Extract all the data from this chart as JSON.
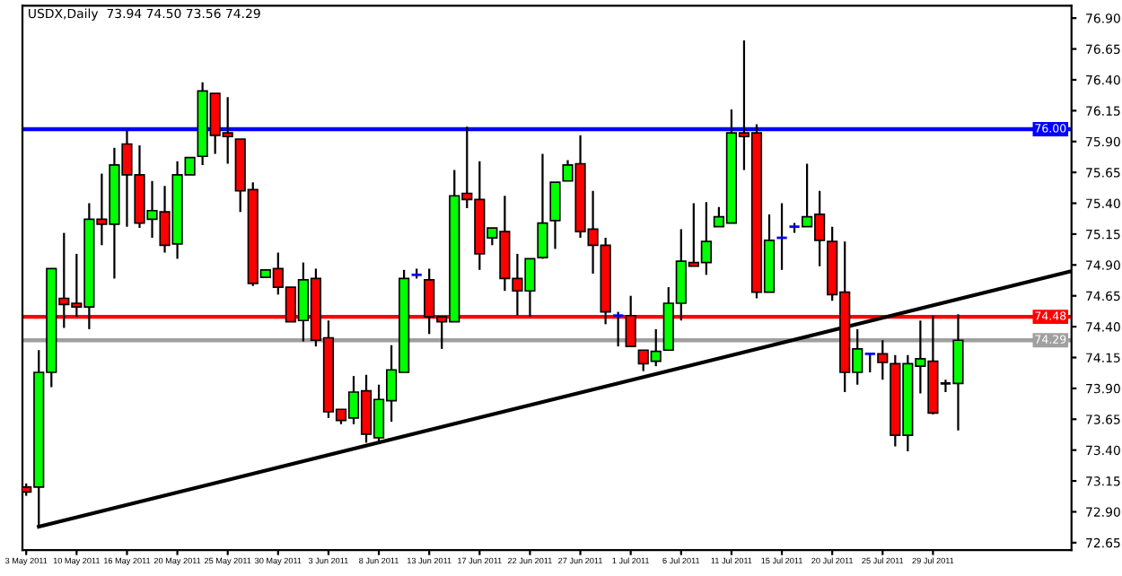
{
  "chart_data": {
    "type": "candlestick",
    "title": "USDX,Daily  73.94 74.50 73.56 74.29",
    "categories": [
      "3 May 2011",
      null,
      null,
      null,
      "10 May 2011",
      null,
      null,
      null,
      "16 May 2011",
      null,
      null,
      null,
      "20 May 2011",
      null,
      null,
      null,
      "25 May 2011",
      null,
      null,
      null,
      "30 May 2011",
      null,
      null,
      null,
      "3 Jun 2011",
      null,
      null,
      null,
      "8 Jun 2011",
      null,
      null,
      null,
      "13 Jun 2011",
      null,
      null,
      null,
      "17 Jun 2011",
      null,
      null,
      null,
      "22 Jun 2011",
      null,
      null,
      null,
      "27 Jun 2011",
      null,
      null,
      null,
      "1 Jul 2011",
      null,
      null,
      null,
      "6 Jul 2011",
      null,
      null,
      null,
      "11 Jul 2011",
      null,
      null,
      null,
      "15 Jul 2011",
      null,
      null,
      null,
      "20 Jul 2011",
      null,
      null,
      null,
      "25 Jul 2011",
      null,
      null,
      null,
      "29 Jul 2011",
      null,
      null,
      null,
      null,
      null,
      null,
      null,
      null,
      null,
      null,
      null
    ],
    "ohlc": [
      [
        73.1,
        73.13,
        73.03,
        73.06
      ],
      [
        73.1,
        74.21,
        72.78,
        74.03
      ],
      [
        74.03,
        74.87,
        73.91,
        74.87
      ],
      [
        74.63,
        75.16,
        74.39,
        74.58
      ],
      [
        74.59,
        74.99,
        74.48,
        74.56
      ],
      [
        74.56,
        75.4,
        74.38,
        75.27
      ],
      [
        75.27,
        75.64,
        75.06,
        75.23
      ],
      [
        75.23,
        75.85,
        74.79,
        75.71
      ],
      [
        75.88,
        75.99,
        75.21,
        75.63
      ],
      [
        75.63,
        75.87,
        75.2,
        75.24
      ],
      [
        75.27,
        75.58,
        75.12,
        75.34
      ],
      [
        75.33,
        75.54,
        75.0,
        75.06
      ],
      [
        75.07,
        75.74,
        74.95,
        75.63
      ],
      [
        75.63,
        75.77,
        75.63,
        75.77
      ],
      [
        75.78,
        76.38,
        75.71,
        76.31
      ],
      [
        76.29,
        76.29,
        75.8,
        75.95
      ],
      [
        75.97,
        76.26,
        75.72,
        75.94
      ],
      [
        75.92,
        75.92,
        75.33,
        75.5
      ],
      [
        75.51,
        75.57,
        74.73,
        74.75
      ],
      [
        74.8,
        74.86,
        74.8,
        74.86
      ],
      [
        74.87,
        75.0,
        74.66,
        74.72
      ],
      [
        74.72,
        74.72,
        74.44,
        74.44
      ],
      [
        74.45,
        74.92,
        74.28,
        74.78
      ],
      [
        74.79,
        74.87,
        74.24,
        74.29
      ],
      [
        74.31,
        74.45,
        73.66,
        73.71
      ],
      [
        73.73,
        73.73,
        73.61,
        73.64
      ],
      [
        73.66,
        74.0,
        73.61,
        73.87
      ],
      [
        73.88,
        74.01,
        73.46,
        73.53
      ],
      [
        73.5,
        73.93,
        73.47,
        73.81
      ],
      [
        73.8,
        74.25,
        73.63,
        74.05
      ],
      [
        74.03,
        74.86,
        74.03,
        74.79
      ],
      [
        74.82,
        74.87,
        74.79,
        74.82
      ],
      [
        74.78,
        74.87,
        74.34,
        74.48
      ],
      [
        74.48,
        74.48,
        74.22,
        74.44
      ],
      [
        74.44,
        75.67,
        74.44,
        75.46
      ],
      [
        75.48,
        76.02,
        75.36,
        75.43
      ],
      [
        75.43,
        75.74,
        74.86,
        74.99
      ],
      [
        75.12,
        75.2,
        75.06,
        75.2
      ],
      [
        75.17,
        75.46,
        74.69,
        74.79
      ],
      [
        74.79,
        74.99,
        74.49,
        74.69
      ],
      [
        74.69,
        74.95,
        74.48,
        74.95
      ],
      [
        74.96,
        75.8,
        74.95,
        75.24
      ],
      [
        75.26,
        75.57,
        75.03,
        75.57
      ],
      [
        75.58,
        75.75,
        75.58,
        75.71
      ],
      [
        75.72,
        75.95,
        75.12,
        75.17
      ],
      [
        75.19,
        75.5,
        74.83,
        75.06
      ],
      [
        75.06,
        75.12,
        74.42,
        74.52
      ],
      [
        74.49,
        74.52,
        74.24,
        74.49
      ],
      [
        74.49,
        74.65,
        74.24,
        74.24
      ],
      [
        74.21,
        74.21,
        74.04,
        74.1
      ],
      [
        74.12,
        74.38,
        74.08,
        74.2
      ],
      [
        74.21,
        74.72,
        74.21,
        74.59
      ],
      [
        74.59,
        75.19,
        74.45,
        74.93
      ],
      [
        74.92,
        75.4,
        74.89,
        74.89
      ],
      [
        74.92,
        75.41,
        74.82,
        75.09
      ],
      [
        75.21,
        75.37,
        75.21,
        75.29
      ],
      [
        75.24,
        76.16,
        75.24,
        75.97
      ],
      [
        75.97,
        76.72,
        75.67,
        75.94
      ],
      [
        75.97,
        76.04,
        74.63,
        74.68
      ],
      [
        74.68,
        75.31,
        74.68,
        75.1
      ],
      [
        75.12,
        75.4,
        74.86,
        75.12
      ],
      [
        75.21,
        75.24,
        75.16,
        75.21
      ],
      [
        75.21,
        75.72,
        75.21,
        75.29
      ],
      [
        75.31,
        75.5,
        74.89,
        75.1
      ],
      [
        75.09,
        75.21,
        74.61,
        74.66
      ],
      [
        74.68,
        75.09,
        73.87,
        74.03
      ],
      [
        74.03,
        74.38,
        73.93,
        74.22
      ],
      [
        74.18,
        74.18,
        74.03,
        74.18
      ],
      [
        74.18,
        74.29,
        73.97,
        74.11
      ],
      [
        74.1,
        74.17,
        73.43,
        73.52
      ],
      [
        73.52,
        74.17,
        73.39,
        74.1
      ],
      [
        74.08,
        74.45,
        73.86,
        74.14
      ],
      [
        74.12,
        74.49,
        73.69,
        73.7
      ],
      [
        73.94,
        73.97,
        73.87,
        73.94
      ],
      [
        73.94,
        74.5,
        73.56,
        74.29
      ],
      null,
      null,
      null,
      null,
      null,
      null,
      null,
      null,
      null
    ],
    "colors": [
      "#ff0000",
      "#00ff00",
      "#00ff00",
      "#ff0000",
      "#ff0000",
      "#00ff00",
      "#ff0000",
      "#00ff00",
      "#ff0000",
      "#ff0000",
      "#00ff00",
      "#ff0000",
      "#00ff00",
      "#00ff00",
      "#00ff00",
      "#ff0000",
      "#ff0000",
      "#ff0000",
      "#ff0000",
      "#00ff00",
      "#ff0000",
      "#ff0000",
      "#00ff00",
      "#ff0000",
      "#ff0000",
      "#ff0000",
      "#00ff00",
      "#ff0000",
      "#00ff00",
      "#00ff00",
      "#00ff00",
      "#0000ff",
      "#ff0000",
      "#ff0000",
      "#00ff00",
      "#ff0000",
      "#ff0000",
      "#00ff00",
      "#ff0000",
      "#ff0000",
      "#00ff00",
      "#00ff00",
      "#00ff00",
      "#00ff00",
      "#ff0000",
      "#ff0000",
      "#ff0000",
      "#0000ff",
      "#ff0000",
      "#ff0000",
      "#00ff00",
      "#00ff00",
      "#00ff00",
      "#ff0000",
      "#00ff00",
      "#00ff00",
      "#00ff00",
      "#ff0000",
      "#ff0000",
      "#00ff00",
      "#0000ff",
      "#0000ff",
      "#00ff00",
      "#ff0000",
      "#ff0000",
      "#ff0000",
      "#00ff00",
      "#0000ff",
      "#ff0000",
      "#ff0000",
      "#00ff00",
      "#00ff00",
      "#ff0000",
      "#000000",
      "#00ff00",
      null,
      null,
      null,
      null,
      null,
      null,
      null,
      null,
      null
    ],
    "series": [
      {
        "type": "line",
        "values": [
          null,
          72.78,
          null,
          null,
          null,
          null,
          null,
          null,
          null,
          null,
          null,
          null,
          null,
          null,
          null,
          null,
          null,
          null,
          null,
          null,
          null,
          null,
          null,
          null,
          null,
          null,
          null,
          null,
          null,
          null,
          null,
          null,
          null,
          null,
          null,
          null,
          null,
          null,
          null,
          null,
          null,
          null,
          null,
          null,
          null,
          null,
          null,
          null,
          null,
          null,
          null,
          null,
          null,
          null,
          null,
          null,
          null,
          null,
          null,
          null,
          null,
          null,
          null,
          null,
          null,
          null,
          null,
          null,
          null,
          null,
          null,
          null,
          null,
          null,
          null,
          null,
          null,
          null,
          null,
          null,
          null,
          null,
          null,
          74.85
        ],
        "color": "#000000"
      }
    ],
    "ref_lines": [
      {
        "axis": "y",
        "value": 76.0,
        "label": "76.00",
        "color": "#0000ff"
      },
      {
        "axis": "y",
        "value": 74.48,
        "label": "74.48",
        "color": "#ff0000"
      },
      {
        "axis": "y",
        "value": 74.29,
        "label": "74.29",
        "color": "#a0a0a0"
      }
    ],
    "ylim": [
      72.59,
      77.0
    ],
    "yticks": [
      {
        "value": 72.65,
        "label": "72.65"
      },
      {
        "value": 72.9,
        "label": "72.90"
      },
      {
        "value": 73.15,
        "label": "73.15"
      },
      {
        "value": 73.4,
        "label": "73.40"
      },
      {
        "value": 73.65,
        "label": "73.65"
      },
      {
        "value": 73.9,
        "label": "73.90"
      },
      {
        "value": 74.15,
        "label": "74.15"
      },
      {
        "value": 74.4,
        "label": "74.40"
      },
      {
        "value": 74.65,
        "label": "74.65"
      },
      {
        "value": 74.9,
        "label": "74.90"
      },
      {
        "value": 75.15,
        "label": "75.15"
      },
      {
        "value": 75.4,
        "label": "75.40"
      },
      {
        "value": 75.65,
        "label": "75.65"
      },
      {
        "value": 75.9,
        "label": "75.90"
      },
      {
        "value": 76.15,
        "label": "76.15"
      },
      {
        "value": 76.4,
        "label": "76.40"
      },
      {
        "value": 76.65,
        "label": "76.65"
      },
      {
        "value": 76.9,
        "label": "76.90"
      }
    ],
    "grid": false
  }
}
